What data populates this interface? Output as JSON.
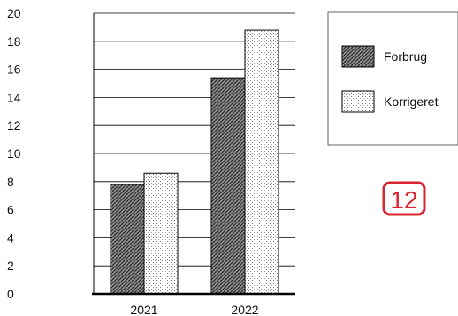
{
  "chart_data": {
    "type": "bar",
    "categories": [
      "2021",
      "2022"
    ],
    "series": [
      {
        "name": "Forbrug",
        "values": [
          7.8,
          15.4
        ],
        "pattern": "dark-hatch"
      },
      {
        "name": "Korrigeret",
        "values": [
          8.6,
          18.8
        ],
        "pattern": "light-dots"
      }
    ],
    "ylim": [
      0,
      20
    ],
    "yticks": [
      "0",
      "2",
      "4",
      "6",
      "8",
      "10",
      "12",
      "14",
      "16",
      "18",
      "20"
    ],
    "grid": true,
    "legend_position": "top-right"
  },
  "badge": {
    "text": "12",
    "color": "#d8252e"
  }
}
